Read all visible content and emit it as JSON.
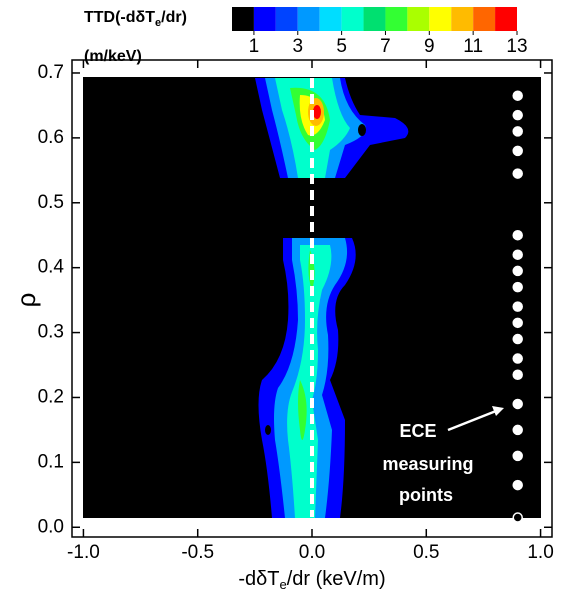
{
  "chart_data": {
    "type": "contour",
    "colorbar": {
      "title_parts": [
        "TTD(-dδT",
        "e",
        "/dr)"
      ],
      "unit": "(m/keV)",
      "levels": [
        0,
        1,
        2,
        3,
        4,
        5,
        6,
        7,
        8,
        9,
        10,
        11,
        12,
        13
      ],
      "colors": [
        "#000000",
        "#0000ff",
        "#0044ff",
        "#0099ff",
        "#00ddff",
        "#00ffcc",
        "#00e070",
        "#33ff33",
        "#aaff00",
        "#ffff00",
        "#ffbb00",
        "#ff6600",
        "#ff0000"
      ],
      "ticks": [
        1,
        3,
        5,
        7,
        9,
        11,
        13
      ]
    },
    "x_label_parts": [
      "-dδT",
      "e",
      "/dr (keV/m)"
    ],
    "y_label": "ρ",
    "xlim": [
      -1.05,
      1.05
    ],
    "ylim": [
      -0.015,
      0.72
    ],
    "xticks": [
      {
        "value": -1,
        "label": "-1.0"
      },
      -0.5,
      {
        "value": 0,
        "label": "0.0"
      },
      0.5,
      {
        "value": 1,
        "label": "1.0"
      }
    ],
    "yticks": [
      {
        "value": 0,
        "label": "0.0"
      },
      0.1,
      0.2,
      0.3,
      0.4,
      0.5,
      0.6,
      0.7
    ],
    "reference_line_x": 0,
    "points": {
      "x": [
        0.9,
        0.9,
        0.9,
        0.9,
        0.9,
        0.9,
        0.9,
        0.9,
        0.9,
        0.9,
        0.9,
        0.9,
        0.9,
        0.9,
        0.9,
        0.9,
        0.9,
        0.9,
        0.9
      ],
      "y": [
        0.015,
        0.065,
        0.11,
        0.15,
        0.19,
        0.235,
        0.26,
        0.29,
        0.315,
        0.34,
        0.37,
        0.395,
        0.42,
        0.45,
        0.545,
        0.58,
        0.61,
        0.635,
        0.665
      ]
    },
    "annotation": [
      "ECE",
      "measuring",
      "points"
    ]
  }
}
